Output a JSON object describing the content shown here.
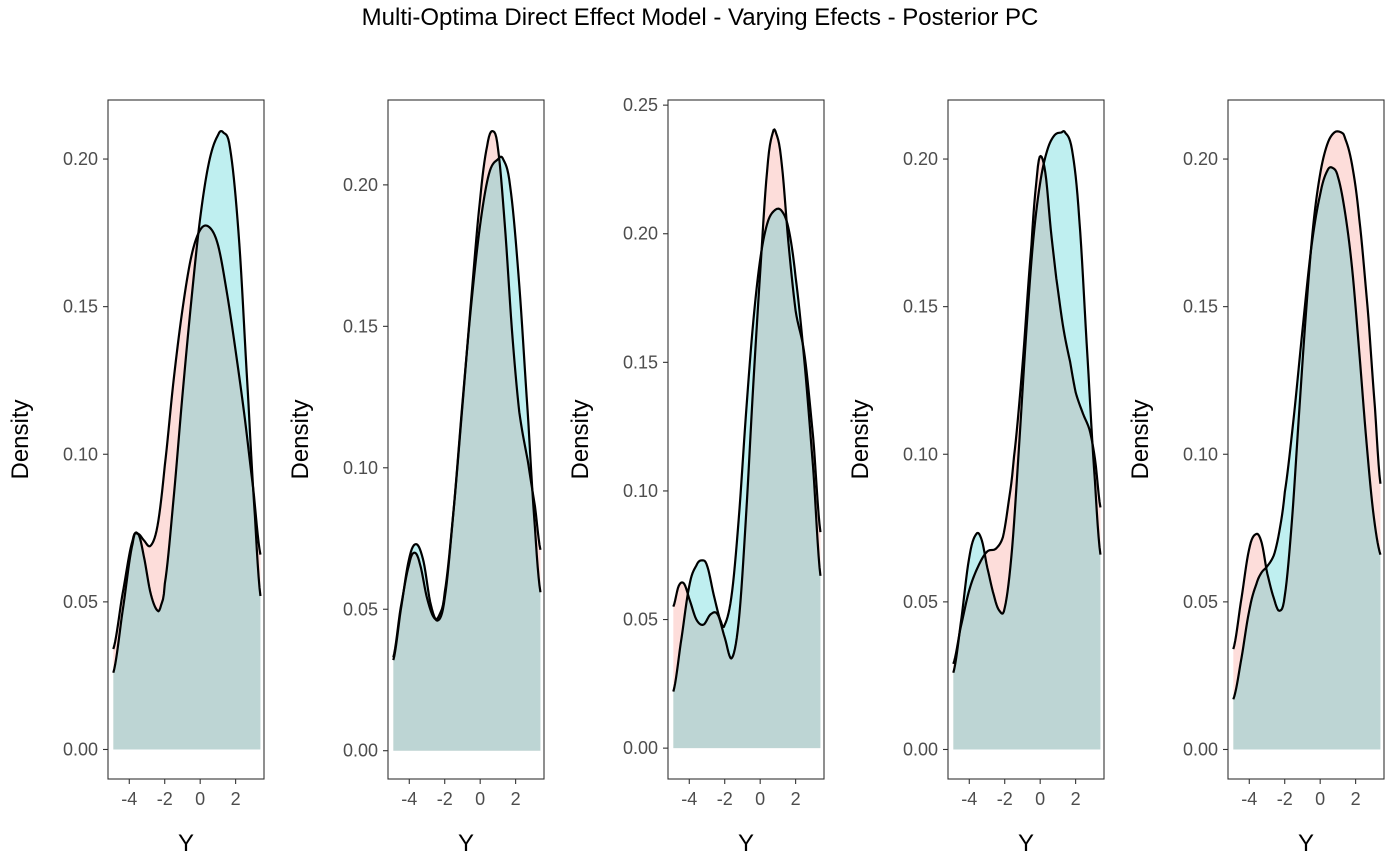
{
  "chart_data": {
    "type": "area",
    "title": "Multi-Optima Direct Effect Model - Varying Efects - Posterior PC",
    "xlabel": "Y",
    "ylabel": "Density",
    "xlim": [
      -5.2,
      3.6
    ],
    "x_ticks": [
      -4,
      -2,
      0,
      2
    ],
    "x_tick_labels": [
      "-4",
      "-2",
      "0",
      "2"
    ],
    "grid": false,
    "colors": {
      "red": "#f8766d",
      "blue": "#00bfc4",
      "fill_alpha": 0.25,
      "line": "#000000"
    },
    "panels": [
      {
        "ylim": [
          -0.01,
          0.22
        ],
        "y_ticks": [
          0.0,
          0.05,
          0.1,
          0.15,
          0.2
        ],
        "y_tick_labels": [
          "0.00",
          "0.05",
          "0.10",
          "0.15",
          "0.20"
        ],
        "series": [
          {
            "color": "red",
            "x": [
              -4.9,
              -4.4,
              -3.8,
              -3.5,
              -3.2,
              -2.8,
              -2.4,
              -2.0,
              -1.5,
              -1.0,
              -0.5,
              0.0,
              0.5,
              1.0,
              1.5,
              2.0,
              2.5,
              3.0,
              3.4
            ],
            "y": [
              0.034,
              0.052,
              0.071,
              0.073,
              0.071,
              0.069,
              0.076,
              0.096,
              0.125,
              0.149,
              0.167,
              0.176,
              0.177,
              0.171,
              0.155,
              0.135,
              0.113,
              0.088,
              0.066
            ]
          },
          {
            "color": "blue",
            "x": [
              -4.9,
              -4.4,
              -3.8,
              -3.5,
              -3.2,
              -2.8,
              -2.4,
              -2.2,
              -2.0,
              -1.5,
              -1.0,
              -0.5,
              0.0,
              0.5,
              1.0,
              1.3,
              1.7,
              2.2,
              2.7,
              3.1,
              3.4
            ],
            "y": [
              0.026,
              0.046,
              0.07,
              0.073,
              0.066,
              0.053,
              0.047,
              0.049,
              0.056,
              0.085,
              0.12,
              0.152,
              0.18,
              0.199,
              0.208,
              0.209,
              0.203,
              0.172,
              0.12,
              0.078,
              0.052
            ]
          }
        ]
      },
      {
        "ylim": [
          -0.01,
          0.23
        ],
        "y_ticks": [
          0.0,
          0.05,
          0.1,
          0.15,
          0.2
        ],
        "y_tick_labels": [
          "0.00",
          "0.05",
          "0.10",
          "0.15",
          "0.20"
        ],
        "series": [
          {
            "color": "red",
            "x": [
              -4.9,
              -4.5,
              -4.0,
              -3.7,
              -3.4,
              -3.0,
              -2.6,
              -2.3,
              -2.0,
              -1.5,
              -1.0,
              -0.5,
              0.0,
              0.4,
              0.7,
              1.0,
              1.4,
              1.8,
              2.2,
              2.7,
              3.1,
              3.4
            ],
            "y": [
              0.033,
              0.05,
              0.066,
              0.07,
              0.066,
              0.054,
              0.047,
              0.048,
              0.056,
              0.085,
              0.122,
              0.16,
              0.195,
              0.214,
              0.219,
              0.213,
              0.185,
              0.148,
              0.12,
              0.102,
              0.086,
              0.071
            ]
          },
          {
            "color": "blue",
            "x": [
              -4.9,
              -4.5,
              -4.0,
              -3.6,
              -3.2,
              -2.8,
              -2.4,
              -2.0,
              -1.5,
              -1.0,
              -0.5,
              0.0,
              0.5,
              1.0,
              1.3,
              1.7,
              2.2,
              2.7,
              3.1,
              3.4
            ],
            "y": [
              0.032,
              0.049,
              0.068,
              0.073,
              0.067,
              0.052,
              0.046,
              0.054,
              0.085,
              0.123,
              0.158,
              0.186,
              0.204,
              0.209,
              0.209,
              0.199,
              0.165,
              0.118,
              0.078,
              0.056
            ]
          }
        ]
      },
      {
        "ylim": [
          -0.012,
          0.252
        ],
        "y_ticks": [
          0.0,
          0.05,
          0.1,
          0.15,
          0.2,
          0.25
        ],
        "y_tick_labels": [
          "0.00",
          "0.05",
          "0.10",
          "0.15",
          "0.20",
          "0.25"
        ],
        "series": [
          {
            "color": "red",
            "x": [
              -4.9,
              -4.6,
              -4.3,
              -4.0,
              -3.6,
              -3.2,
              -2.8,
              -2.4,
              -2.0,
              -1.6,
              -1.2,
              -0.8,
              -0.4,
              0.0,
              0.4,
              0.7,
              0.9,
              1.2,
              1.6,
              2.0,
              2.5,
              3.0,
              3.4
            ],
            "y": [
              0.055,
              0.063,
              0.064,
              0.058,
              0.05,
              0.048,
              0.052,
              0.052,
              0.043,
              0.035,
              0.05,
              0.09,
              0.14,
              0.185,
              0.225,
              0.239,
              0.239,
              0.228,
              0.196,
              0.17,
              0.153,
              0.12,
              0.084
            ]
          },
          {
            "color": "blue",
            "x": [
              -4.9,
              -4.5,
              -4.0,
              -3.6,
              -3.3,
              -3.0,
              -2.6,
              -2.2,
              -2.0,
              -1.6,
              -1.2,
              -0.8,
              -0.4,
              0.0,
              0.4,
              0.8,
              1.2,
              1.6,
              2.0,
              2.5,
              3.0,
              3.4
            ],
            "y": [
              0.022,
              0.04,
              0.063,
              0.071,
              0.073,
              0.071,
              0.059,
              0.049,
              0.048,
              0.06,
              0.09,
              0.13,
              0.165,
              0.19,
              0.204,
              0.209,
              0.209,
              0.202,
              0.183,
              0.15,
              0.108,
              0.067
            ]
          }
        ]
      },
      {
        "ylim": [
          -0.01,
          0.22
        ],
        "y_ticks": [
          0.0,
          0.05,
          0.1,
          0.15,
          0.2
        ],
        "y_tick_labels": [
          "0.00",
          "0.05",
          "0.10",
          "0.15",
          "0.20"
        ],
        "series": [
          {
            "color": "red",
            "x": [
              -4.9,
              -4.5,
              -4.0,
              -3.5,
              -3.0,
              -2.5,
              -2.1,
              -1.8,
              -1.5,
              -1.0,
              -0.5,
              -0.2,
              0.0,
              0.3,
              0.6,
              0.9,
              1.3,
              1.7,
              2.0,
              2.4,
              2.8,
              3.1,
              3.4
            ],
            "y": [
              0.029,
              0.041,
              0.054,
              0.062,
              0.067,
              0.068,
              0.072,
              0.083,
              0.098,
              0.13,
              0.17,
              0.193,
              0.201,
              0.195,
              0.176,
              0.16,
              0.143,
              0.131,
              0.121,
              0.114,
              0.108,
              0.098,
              0.082
            ]
          },
          {
            "color": "blue",
            "x": [
              -4.9,
              -4.5,
              -4.0,
              -3.6,
              -3.3,
              -3.0,
              -2.6,
              -2.3,
              -2.0,
              -1.6,
              -1.2,
              -0.8,
              -0.4,
              0.0,
              0.4,
              0.8,
              1.2,
              1.4,
              1.8,
              2.2,
              2.7,
              3.1,
              3.4
            ],
            "y": [
              0.026,
              0.042,
              0.065,
              0.073,
              0.071,
              0.062,
              0.052,
              0.047,
              0.048,
              0.067,
              0.102,
              0.14,
              0.172,
              0.192,
              0.203,
              0.208,
              0.209,
              0.209,
              0.203,
              0.18,
              0.13,
              0.09,
              0.066
            ]
          }
        ]
      },
      {
        "ylim": [
          -0.01,
          0.22
        ],
        "y_ticks": [
          0.0,
          0.05,
          0.1,
          0.15,
          0.2
        ],
        "y_tick_labels": [
          "0.00",
          "0.05",
          "0.10",
          "0.15",
          "0.20"
        ],
        "series": [
          {
            "color": "red",
            "x": [
              -4.9,
              -4.5,
              -4.0,
              -3.6,
              -3.3,
              -3.0,
              -2.6,
              -2.3,
              -2.0,
              -1.6,
              -1.2,
              -0.8,
              -0.4,
              0.0,
              0.4,
              0.8,
              1.2,
              1.4,
              1.8,
              2.2,
              2.7,
              3.1,
              3.4
            ],
            "y": [
              0.034,
              0.049,
              0.068,
              0.073,
              0.07,
              0.06,
              0.051,
              0.047,
              0.052,
              0.077,
              0.113,
              0.148,
              0.177,
              0.195,
              0.205,
              0.209,
              0.209,
              0.207,
              0.198,
              0.18,
              0.148,
              0.115,
              0.09
            ]
          },
          {
            "color": "blue",
            "x": [
              -4.9,
              -4.5,
              -4.0,
              -3.6,
              -3.3,
              -3.0,
              -2.6,
              -2.3,
              -2.0,
              -1.5,
              -1.0,
              -0.5,
              0.0,
              0.4,
              0.7,
              1.0,
              1.4,
              1.8,
              2.2,
              2.6,
              3.0,
              3.4
            ],
            "y": [
              0.017,
              0.029,
              0.047,
              0.056,
              0.06,
              0.062,
              0.066,
              0.074,
              0.087,
              0.112,
              0.142,
              0.17,
              0.188,
              0.196,
              0.197,
              0.194,
              0.182,
              0.163,
              0.135,
              0.105,
              0.08,
              0.066
            ]
          }
        ]
      }
    ]
  }
}
